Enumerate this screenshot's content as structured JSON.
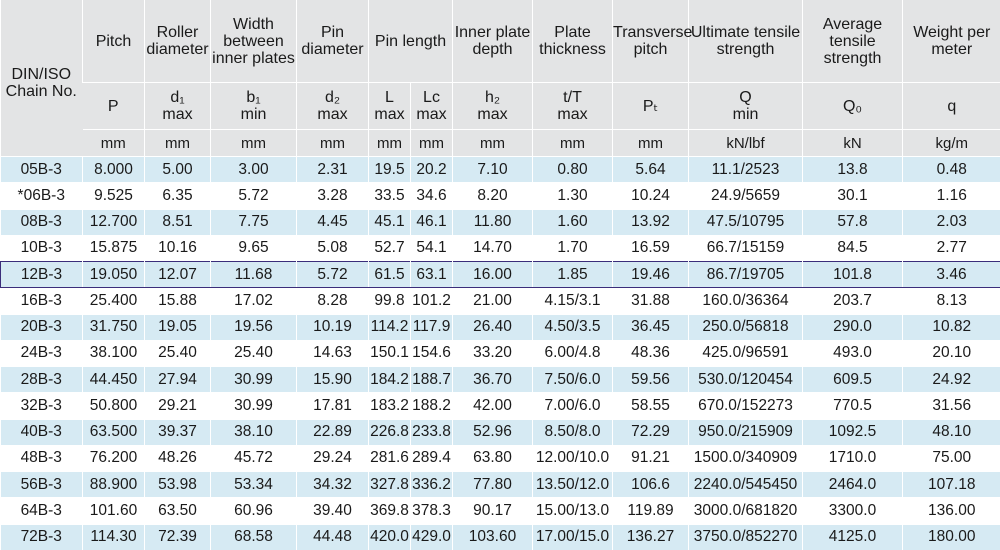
{
  "headers": {
    "no": "DIN/ISO Chain No.",
    "pitch": "Pitch",
    "roller": "Roller diameter",
    "width": "Width between inner plates",
    "pin_d": "Pin diameter",
    "pin_len": "Pin length",
    "inner": "Inner plate depth",
    "plate": "Plate thickness",
    "trans": "Transverse pitch",
    "ult": "Ultimate tensile strength",
    "avg": "Average tensile strength",
    "weight": "Weight per meter"
  },
  "symbols": [
    {
      "sym": "P",
      "lim": ""
    },
    {
      "sym": "d₁",
      "lim": "max"
    },
    {
      "sym": "b₁",
      "lim": "min"
    },
    {
      "sym": "d₂",
      "lim": "max"
    },
    {
      "sym": "L",
      "lim": "max"
    },
    {
      "sym": "Lc",
      "lim": "max"
    },
    {
      "sym": "h₂",
      "lim": "max"
    },
    {
      "sym": "t/T",
      "lim": "max"
    },
    {
      "sym": "Pₜ",
      "lim": ""
    },
    {
      "sym": "Q",
      "lim": "min"
    },
    {
      "sym": "Q₀",
      "lim": ""
    },
    {
      "sym": "q",
      "lim": ""
    }
  ],
  "units": [
    "mm",
    "mm",
    "mm",
    "mm",
    "mm",
    "mm",
    "mm",
    "mm",
    "mm",
    "kN/lbf",
    "kN",
    "kg/m"
  ],
  "rows": [
    [
      "05B-3",
      "8.000",
      "5.00",
      "3.00",
      "2.31",
      "19.5",
      "20.2",
      "7.10",
      "0.80",
      "5.64",
      "11.1/2523",
      "13.8",
      "0.48"
    ],
    [
      "*06B-3",
      "9.525",
      "6.35",
      "5.72",
      "3.28",
      "33.5",
      "34.6",
      "8.20",
      "1.30",
      "10.24",
      "24.9/5659",
      "30.1",
      "1.16"
    ],
    [
      "08B-3",
      "12.700",
      "8.51",
      "7.75",
      "4.45",
      "45.1",
      "46.1",
      "11.80",
      "1.60",
      "13.92",
      "47.5/10795",
      "57.8",
      "2.03"
    ],
    [
      "10B-3",
      "15.875",
      "10.16",
      "9.65",
      "5.08",
      "52.7",
      "54.1",
      "14.70",
      "1.70",
      "16.59",
      "66.7/15159",
      "84.5",
      "2.77"
    ],
    [
      "12B-3",
      "19.050",
      "12.07",
      "11.68",
      "5.72",
      "61.5",
      "63.1",
      "16.00",
      "1.85",
      "19.46",
      "86.7/19705",
      "101.8",
      "3.46"
    ],
    [
      "16B-3",
      "25.400",
      "15.88",
      "17.02",
      "8.28",
      "99.8",
      "101.2",
      "21.00",
      "4.15/3.1",
      "31.88",
      "160.0/36364",
      "203.7",
      "8.13"
    ],
    [
      "20B-3",
      "31.750",
      "19.05",
      "19.56",
      "10.19",
      "114.2",
      "117.9",
      "26.40",
      "4.50/3.5",
      "36.45",
      "250.0/56818",
      "290.0",
      "10.82"
    ],
    [
      "24B-3",
      "38.100",
      "25.40",
      "25.40",
      "14.63",
      "150.1",
      "154.6",
      "33.20",
      "6.00/4.8",
      "48.36",
      "425.0/96591",
      "493.0",
      "20.10"
    ],
    [
      "28B-3",
      "44.450",
      "27.94",
      "30.99",
      "15.90",
      "184.2",
      "188.7",
      "36.70",
      "7.50/6.0",
      "59.56",
      "530.0/120454",
      "609.5",
      "24.92"
    ],
    [
      "32B-3",
      "50.800",
      "29.21",
      "30.99",
      "17.81",
      "183.2",
      "188.2",
      "42.00",
      "7.00/6.0",
      "58.55",
      "670.0/152273",
      "770.5",
      "31.56"
    ],
    [
      "40B-3",
      "63.500",
      "39.37",
      "38.10",
      "22.89",
      "226.8",
      "233.8",
      "52.96",
      "8.50/8.0",
      "72.29",
      "950.0/215909",
      "1092.5",
      "48.10"
    ],
    [
      "48B-3",
      "76.200",
      "48.26",
      "45.72",
      "29.24",
      "281.6",
      "289.4",
      "63.80",
      "12.00/10.0",
      "91.21",
      "1500.0/340909",
      "1710.0",
      "75.00"
    ],
    [
      "56B-3",
      "88.900",
      "53.98",
      "53.34",
      "34.32",
      "327.8",
      "336.2",
      "77.80",
      "13.50/12.0",
      "106.6",
      "2240.0/545450",
      "2464.0",
      "107.18"
    ],
    [
      "64B-3",
      "101.60",
      "63.50",
      "60.96",
      "39.40",
      "369.8",
      "378.3",
      "90.17",
      "15.00/13.0",
      "119.89",
      "3000.0/681820",
      "3300.0",
      "136.00"
    ],
    [
      "72B-3",
      "114.30",
      "72.39",
      "68.58",
      "44.48",
      "420.0",
      "429.0",
      "103.60",
      "17.00/15.0",
      "136.27",
      "3750.0/852270",
      "4125.0",
      "180.00"
    ]
  ],
  "highlight_row": 4,
  "colors": {
    "header_bg": "#e3e4e5",
    "stripe": "#d6eaf3",
    "highlight_border": "#3b2d7a"
  }
}
